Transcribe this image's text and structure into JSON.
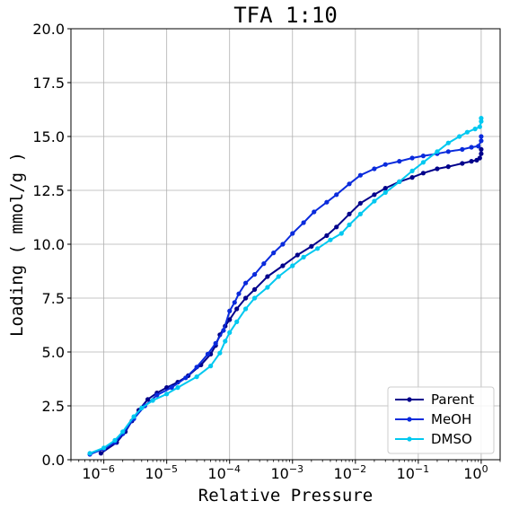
{
  "chart_data": {
    "type": "line",
    "title": "TFA 1:10",
    "xlabel": "Relative Pressure",
    "ylabel": "Loading ( mmol/g )",
    "x_scale": "log",
    "xlim": [
      3e-07,
      2
    ],
    "ylim": [
      0,
      20
    ],
    "yticks": [
      "0.0",
      "2.5",
      "5.0",
      "7.5",
      "10.0",
      "12.5",
      "15.0",
      "17.5",
      "20.0"
    ],
    "xticks": [
      {
        "base": "10",
        "exp": "−6",
        "value": 1e-06
      },
      {
        "base": "10",
        "exp": "−5",
        "value": 1e-05
      },
      {
        "base": "10",
        "exp": "−4",
        "value": 0.0001
      },
      {
        "base": "10",
        "exp": "−3",
        "value": 0.001
      },
      {
        "base": "10",
        "exp": "−2",
        "value": 0.01
      },
      {
        "base": "10",
        "exp": "−1",
        "value": 0.1
      },
      {
        "base": "10",
        "exp": "0",
        "value": 1
      }
    ],
    "grid": true,
    "legend_position": "bottom-right",
    "series": [
      {
        "name": "Parent",
        "color": "#00008b",
        "points": [
          [
            9e-07,
            0.3
          ],
          [
            1.6e-06,
            0.8
          ],
          [
            2.2e-06,
            1.3
          ],
          [
            2.8e-06,
            1.8
          ],
          [
            3.6e-06,
            2.3
          ],
          [
            5e-06,
            2.8
          ],
          [
            7e-06,
            3.1
          ],
          [
            1e-05,
            3.35
          ],
          [
            1.5e-05,
            3.6
          ],
          [
            2.2e-05,
            3.9
          ],
          [
            3.5e-05,
            4.4
          ],
          [
            5e-05,
            4.9
          ],
          [
            6e-05,
            5.3
          ],
          [
            7e-05,
            5.8
          ],
          [
            8.5e-05,
            6.2
          ],
          [
            0.0001,
            6.5
          ],
          [
            0.00013,
            7.0
          ],
          [
            0.00018,
            7.5
          ],
          [
            0.00025,
            7.9
          ],
          [
            0.0004,
            8.5
          ],
          [
            0.0007,
            9.0
          ],
          [
            0.0012,
            9.5
          ],
          [
            0.002,
            9.9
          ],
          [
            0.0035,
            10.4
          ],
          [
            0.005,
            10.8
          ],
          [
            0.008,
            11.4
          ],
          [
            0.012,
            11.9
          ],
          [
            0.02,
            12.3
          ],
          [
            0.03,
            12.6
          ],
          [
            0.05,
            12.9
          ],
          [
            0.08,
            13.1
          ],
          [
            0.12,
            13.3
          ],
          [
            0.2,
            13.5
          ],
          [
            0.3,
            13.6
          ],
          [
            0.5,
            13.75
          ],
          [
            0.7,
            13.85
          ],
          [
            0.85,
            13.9
          ],
          [
            0.95,
            14.0
          ],
          [
            1.0,
            14.2
          ],
          [
            1.0,
            14.4
          ]
        ]
      },
      {
        "name": "MeOH",
        "color": "#0a2bdc",
        "points": [
          [
            6e-07,
            0.25
          ],
          [
            1e-06,
            0.5
          ],
          [
            1.5e-06,
            0.8
          ],
          [
            2e-06,
            1.2
          ],
          [
            3e-06,
            1.9
          ],
          [
            4.5e-06,
            2.5
          ],
          [
            7e-06,
            3.0
          ],
          [
            1.2e-05,
            3.35
          ],
          [
            2e-05,
            3.8
          ],
          [
            3e-05,
            4.3
          ],
          [
            4.5e-05,
            4.9
          ],
          [
            6e-05,
            5.4
          ],
          [
            8e-05,
            6.0
          ],
          [
            0.0001,
            6.9
          ],
          [
            0.00012,
            7.3
          ],
          [
            0.00014,
            7.7
          ],
          [
            0.00018,
            8.2
          ],
          [
            0.00025,
            8.6
          ],
          [
            0.00035,
            9.1
          ],
          [
            0.0005,
            9.6
          ],
          [
            0.0007,
            10.0
          ],
          [
            0.001,
            10.5
          ],
          [
            0.0015,
            11.0
          ],
          [
            0.0022,
            11.5
          ],
          [
            0.0035,
            11.95
          ],
          [
            0.005,
            12.3
          ],
          [
            0.008,
            12.8
          ],
          [
            0.012,
            13.2
          ],
          [
            0.02,
            13.5
          ],
          [
            0.03,
            13.7
          ],
          [
            0.05,
            13.85
          ],
          [
            0.08,
            14.0
          ],
          [
            0.12,
            14.1
          ],
          [
            0.2,
            14.2
          ],
          [
            0.3,
            14.3
          ],
          [
            0.5,
            14.4
          ],
          [
            0.7,
            14.5
          ],
          [
            0.9,
            14.55
          ],
          [
            1.0,
            14.8
          ],
          [
            1.0,
            15.0
          ]
        ]
      },
      {
        "name": "DMSO",
        "color": "#00c8f0",
        "points": [
          [
            6e-07,
            0.3
          ],
          [
            1e-06,
            0.55
          ],
          [
            1.5e-06,
            0.9
          ],
          [
            2e-06,
            1.3
          ],
          [
            3e-06,
            2.0
          ],
          [
            4e-06,
            2.4
          ],
          [
            6e-06,
            2.75
          ],
          [
            1e-05,
            3.05
          ],
          [
            1.5e-05,
            3.35
          ],
          [
            3e-05,
            3.85
          ],
          [
            5e-05,
            4.35
          ],
          [
            7e-05,
            4.95
          ],
          [
            8.5e-05,
            5.5
          ],
          [
            0.0001,
            5.9
          ],
          [
            0.00013,
            6.4
          ],
          [
            0.00018,
            7.0
          ],
          [
            0.00025,
            7.5
          ],
          [
            0.0004,
            8.0
          ],
          [
            0.0006,
            8.5
          ],
          [
            0.001,
            9.0
          ],
          [
            0.0015,
            9.4
          ],
          [
            0.0025,
            9.8
          ],
          [
            0.004,
            10.2
          ],
          [
            0.006,
            10.5
          ],
          [
            0.008,
            10.9
          ],
          [
            0.012,
            11.4
          ],
          [
            0.02,
            12.0
          ],
          [
            0.03,
            12.4
          ],
          [
            0.05,
            12.9
          ],
          [
            0.08,
            13.4
          ],
          [
            0.12,
            13.8
          ],
          [
            0.2,
            14.3
          ],
          [
            0.3,
            14.7
          ],
          [
            0.45,
            15.0
          ],
          [
            0.6,
            15.2
          ],
          [
            0.8,
            15.35
          ],
          [
            0.95,
            15.45
          ],
          [
            1.0,
            15.7
          ],
          [
            1.0,
            15.85
          ]
        ]
      }
    ]
  }
}
